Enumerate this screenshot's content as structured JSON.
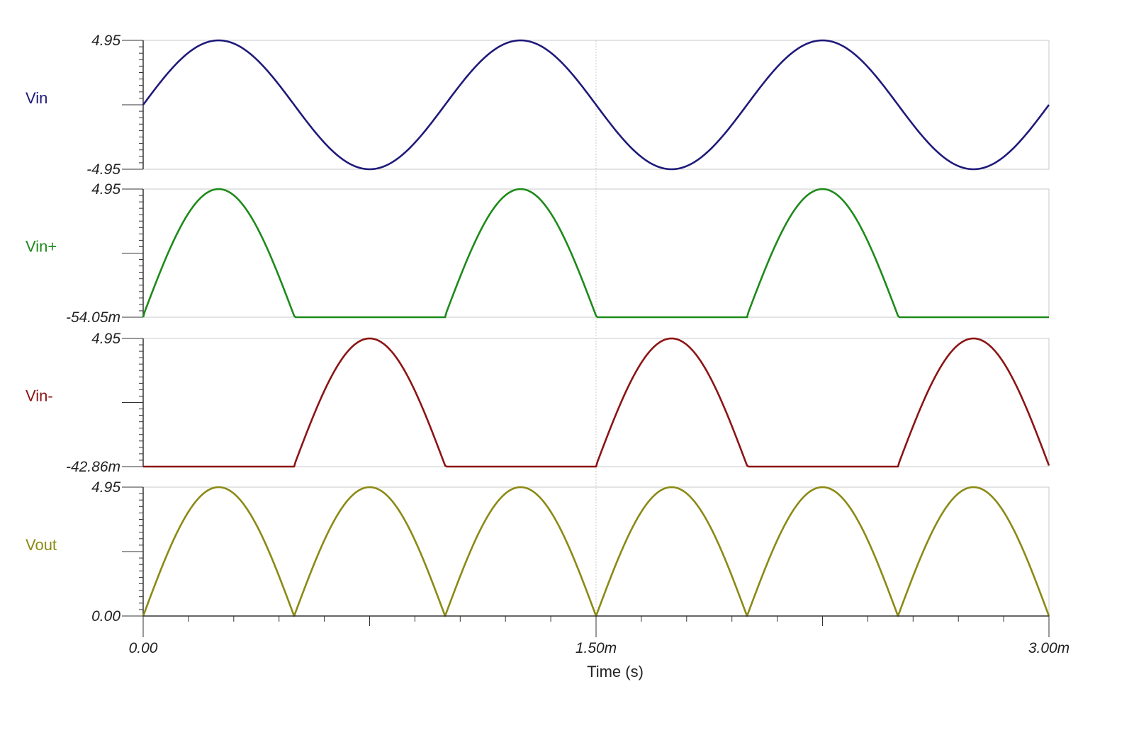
{
  "chart_data": {
    "type": "line",
    "xlabel": "Time (s)",
    "x_ticks": [
      {
        "value": 0,
        "label": "0.00"
      },
      {
        "value": 0.0015,
        "label": "1.50m"
      },
      {
        "value": 0.003,
        "label": "3.00m"
      }
    ],
    "xlim": [
      0,
      0.003
    ],
    "grid": "vertical line at 1.50m",
    "frequency_hz": 1000,
    "amplitude_v": 4.95,
    "panels": [
      {
        "name": "Vin",
        "color": "#1f1a7a",
        "ylim": [
          -4.95,
          4.95
        ],
        "y_top_label": "4.95",
        "y_bottom_label": "-4.95",
        "waveform": "sine",
        "description_values": {
          "peak": 4.95,
          "trough": -4.95
        }
      },
      {
        "name": "Vin+",
        "color": "#1e8a1a",
        "ylim": [
          -0.05405,
          4.95
        ],
        "y_top_label": "4.95",
        "y_bottom_label": "-54.05m",
        "waveform": "half-wave positive",
        "description_values": {
          "peak": 4.95,
          "floor": -0.05405
        }
      },
      {
        "name": "Vin-",
        "color": "#8c1414",
        "ylim": [
          -0.04286,
          4.95
        ],
        "y_top_label": "4.95",
        "y_bottom_label": "-42.86m",
        "waveform": "half-wave negative (inverted)",
        "description_values": {
          "peak": 4.95,
          "floor": -0.04286
        }
      },
      {
        "name": "Vout",
        "color": "#8a8a14",
        "ylim": [
          0,
          4.95
        ],
        "y_top_label": "4.95",
        "y_bottom_label": "0.00",
        "waveform": "full-wave rectified",
        "description_values": {
          "peak": 4.95,
          "floor": 0
        }
      }
    ]
  }
}
